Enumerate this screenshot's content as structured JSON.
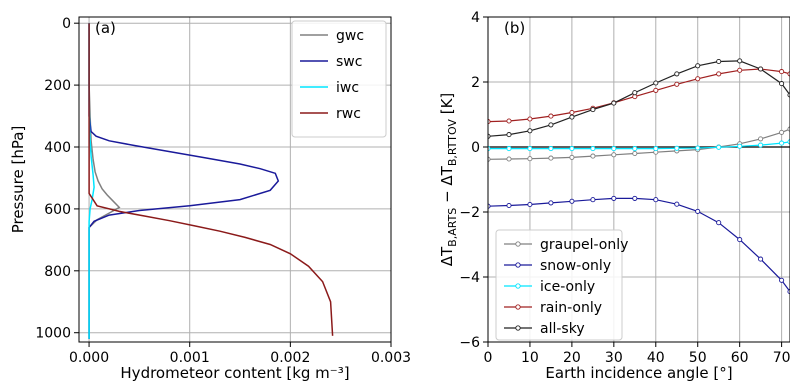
{
  "chart_data": [
    {
      "type": "line",
      "panel_label": "(a)",
      "xlabel": "Hydrometeor content [kg m⁻³]",
      "ylabel": "Pressure [hPa]",
      "xlim": [
        -0.0001,
        0.003
      ],
      "ylim": [
        1030,
        -20
      ],
      "y_inverted": true,
      "grid": true,
      "legend_position": "top-right",
      "xticks": [
        0,
        0.001,
        0.002,
        0.003
      ],
      "xtick_labels": [
        "0.000",
        "0.001",
        "0.002",
        "0.003"
      ],
      "yticks": [
        0,
        200,
        400,
        600,
        800,
        1000
      ],
      "ytick_labels": [
        "0",
        "200",
        "400",
        "600",
        "800",
        "1000"
      ],
      "series": [
        {
          "name": "gwc",
          "color": "#808080",
          "x": [
            0,
            0,
            1e-05,
            2e-05,
            4e-05,
            6e-05,
            9e-05,
            0.00013,
            0.00018,
            0.00024,
            0.0003,
            0.00022,
            8e-05,
            0,
            0
          ],
          "y": [
            0,
            200,
            300,
            380,
            440,
            480,
            510,
            535,
            555,
            575,
            595,
            610,
            635,
            660,
            1020
          ]
        },
        {
          "name": "swc",
          "color": "#1a1a9a",
          "x": [
            0,
            0,
            2e-05,
            7e-05,
            0.0002,
            0.00045,
            0.0008,
            0.00115,
            0.0015,
            0.0017,
            0.00185,
            0.00188,
            0.0018,
            0.0015,
            0.001,
            0.0005,
            0.0002,
            5e-05,
            0,
            0
          ],
          "y": [
            0,
            300,
            350,
            365,
            380,
            395,
            415,
            435,
            455,
            470,
            485,
            510,
            540,
            570,
            590,
            605,
            620,
            640,
            660,
            1020
          ]
        },
        {
          "name": "iwc",
          "color": "#00e5ff",
          "x": [
            0,
            0,
            5e-06,
            2e-05,
            4e-05,
            5e-05,
            3e-05,
            1e-05,
            0,
            0,
            0
          ],
          "y": [
            0,
            250,
            350,
            430,
            490,
            530,
            570,
            600,
            640,
            700,
            1020
          ]
        },
        {
          "name": "rwc",
          "color": "#8b1a1a",
          "x": [
            0,
            0,
            8e-05,
            0.0003,
            0.00055,
            0.0008,
            0.00105,
            0.0013,
            0.00155,
            0.0018,
            0.002,
            0.00218,
            0.00232,
            0.0024,
            0.00242
          ],
          "y": [
            0,
            550,
            590,
            608,
            623,
            638,
            655,
            672,
            692,
            715,
            745,
            785,
            835,
            900,
            1010
          ]
        }
      ]
    },
    {
      "type": "line",
      "panel_label": "(b)",
      "xlabel": "Earth incidence angle [°]",
      "ylabel": "ΔT_B,ARTS − ΔT_B,RTTOV [K]",
      "xlim": [
        0,
        72
      ],
      "ylim": [
        -6,
        4
      ],
      "grid": true,
      "zero_line": true,
      "legend_position": "lower-left",
      "xticks": [
        0,
        10,
        20,
        30,
        40,
        50,
        60,
        70
      ],
      "xtick_labels": [
        "0",
        "10",
        "20",
        "30",
        "40",
        "50",
        "60",
        "70"
      ],
      "yticks": [
        -6,
        -4,
        -2,
        0,
        2,
        4
      ],
      "ytick_labels": [
        "−6",
        "−4",
        "−2",
        "0",
        "2",
        "4"
      ],
      "series": [
        {
          "name": "graupel-only",
          "color": "#808080",
          "x": [
            0,
            5,
            10,
            15,
            20,
            25,
            30,
            35,
            40,
            45,
            50,
            55,
            60,
            65,
            70,
            72
          ],
          "y": [
            -0.38,
            -0.37,
            -0.36,
            -0.34,
            -0.32,
            -0.28,
            -0.24,
            -0.2,
            -0.16,
            -0.12,
            -0.08,
            0.0,
            0.1,
            0.25,
            0.45,
            0.55
          ]
        },
        {
          "name": "snow-only",
          "color": "#1a1a9a",
          "x": [
            0,
            5,
            10,
            15,
            20,
            25,
            30,
            35,
            40,
            45,
            50,
            55,
            60,
            65,
            70,
            72
          ],
          "y": [
            -1.82,
            -1.8,
            -1.77,
            -1.72,
            -1.67,
            -1.62,
            -1.58,
            -1.58,
            -1.62,
            -1.76,
            -1.98,
            -2.33,
            -2.85,
            -3.45,
            -4.1,
            -4.45
          ]
        },
        {
          "name": "ice-only",
          "color": "#00e5ff",
          "x": [
            0,
            5,
            10,
            15,
            20,
            25,
            30,
            35,
            40,
            45,
            50,
            55,
            60,
            65,
            70,
            72
          ],
          "y": [
            -0.05,
            -0.05,
            -0.05,
            -0.05,
            -0.05,
            -0.05,
            -0.05,
            -0.05,
            -0.05,
            -0.04,
            -0.03,
            -0.01,
            0.02,
            0.06,
            0.12,
            0.16
          ]
        },
        {
          "name": "rain-only",
          "color": "#a02020",
          "x": [
            0,
            5,
            10,
            15,
            20,
            25,
            30,
            35,
            40,
            45,
            50,
            55,
            60,
            65,
            70,
            72
          ],
          "y": [
            0.78,
            0.8,
            0.86,
            0.95,
            1.06,
            1.19,
            1.36,
            1.55,
            1.74,
            1.93,
            2.1,
            2.25,
            2.36,
            2.4,
            2.32,
            2.25
          ]
        },
        {
          "name": "all-sky",
          "color": "#222222",
          "x": [
            0,
            5,
            10,
            15,
            20,
            25,
            30,
            35,
            40,
            45,
            50,
            55,
            60,
            65,
            70,
            72
          ],
          "y": [
            0.33,
            0.38,
            0.5,
            0.68,
            0.92,
            1.15,
            1.35,
            1.67,
            1.97,
            2.25,
            2.5,
            2.63,
            2.65,
            2.4,
            1.95,
            1.6
          ]
        }
      ]
    }
  ]
}
